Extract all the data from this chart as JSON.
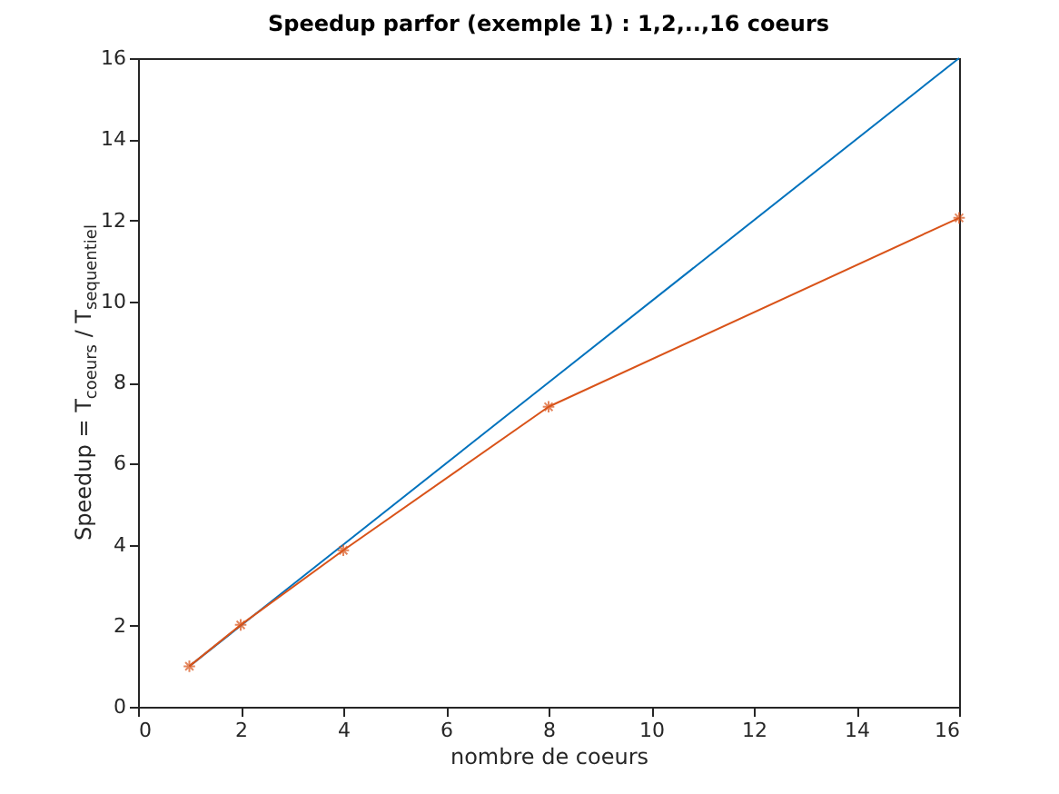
{
  "chart_data": {
    "type": "line",
    "title": "Speedup parfor (exemple 1) : 1,2,..,16 coeurs",
    "xlabel": "nombre de coeurs",
    "ylabel": "Speedup = T$_{coeurs}$ / T$_{sequentiel}$",
    "x": [
      1,
      2,
      4,
      8,
      16
    ],
    "series": [
      {
        "color": "#0072bd",
        "values": [
          1,
          2,
          4,
          8,
          16
        ],
        "marker": "none"
      },
      {
        "color": "#d95319",
        "values": [
          1,
          2.02,
          3.86,
          7.4,
          12.06
        ],
        "marker": "cross"
      }
    ],
    "xlim": [
      0,
      16
    ],
    "xticks": [
      0,
      2,
      4,
      6,
      8,
      10,
      12,
      14,
      16
    ],
    "ylim": [
      0,
      16
    ],
    "yticks": [
      0,
      2,
      4,
      6,
      8,
      10,
      12,
      14,
      16
    ],
    "grid": false,
    "line_style": "solid"
  }
}
